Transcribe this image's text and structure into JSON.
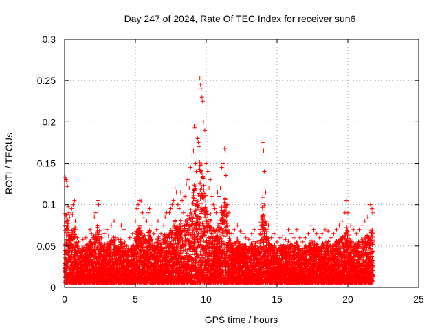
{
  "chart_data": {
    "type": "scatter",
    "title": "Day 247 of 2024, Rate Of TEC Index for receiver sun6",
    "xlabel": "GPS time / hours",
    "ylabel": "ROTI / TECUs",
    "xlim": [
      0,
      25
    ],
    "ylim": [
      0,
      0.3
    ],
    "xticks": [
      "0",
      "5",
      "10",
      "15",
      "20",
      "25"
    ],
    "xtick_values": [
      0,
      5,
      10,
      15,
      20,
      25
    ],
    "yticks": [
      "0",
      "0.05",
      "0.1",
      "0.15",
      "0.2",
      "0.25",
      "0.3"
    ],
    "ytick_values": [
      0,
      0.05,
      0.1,
      0.15,
      0.2,
      0.25,
      0.3
    ],
    "grid": true,
    "marker": "plus",
    "color": "#ff0000",
    "series": [
      {
        "points": [
          [
            0.05,
            0.133
          ],
          [
            0.1,
            0.13
          ],
          [
            0.15,
            0.128
          ],
          [
            0.2,
            0.122
          ],
          [
            0.25,
            0.098
          ],
          [
            0.3,
            0.09
          ],
          [
            0.35,
            0.085
          ],
          [
            0.4,
            0.06
          ],
          [
            0.5,
            0.095
          ],
          [
            0.55,
            0.088
          ],
          [
            0.6,
            0.1
          ],
          [
            0.7,
            0.105
          ],
          [
            0.75,
            0.08
          ],
          [
            0.8,
            0.07
          ],
          [
            0.9,
            0.06
          ],
          [
            1.0,
            0.055
          ],
          [
            1.1,
            0.045
          ],
          [
            1.3,
            0.058
          ],
          [
            1.5,
            0.06
          ],
          [
            1.6,
            0.052
          ],
          [
            1.8,
            0.07
          ],
          [
            1.9,
            0.065
          ],
          [
            2.0,
            0.06
          ],
          [
            2.1,
            0.085
          ],
          [
            2.2,
            0.09
          ],
          [
            2.35,
            0.105
          ],
          [
            2.4,
            0.1
          ],
          [
            2.5,
            0.075
          ],
          [
            2.6,
            0.06
          ],
          [
            2.8,
            0.065
          ],
          [
            3.0,
            0.07
          ],
          [
            3.1,
            0.062
          ],
          [
            3.3,
            0.075
          ],
          [
            3.5,
            0.08
          ],
          [
            3.6,
            0.06
          ],
          [
            3.8,
            0.058
          ],
          [
            4.0,
            0.075
          ],
          [
            4.2,
            0.07
          ],
          [
            4.4,
            0.05
          ],
          [
            4.6,
            0.06
          ],
          [
            4.8,
            0.065
          ],
          [
            5.0,
            0.08
          ],
          [
            5.1,
            0.095
          ],
          [
            5.2,
            0.1
          ],
          [
            5.3,
            0.105
          ],
          [
            5.4,
            0.104
          ],
          [
            5.5,
            0.09
          ],
          [
            5.6,
            0.085
          ],
          [
            5.8,
            0.08
          ],
          [
            5.9,
            0.09
          ],
          [
            6.0,
            0.095
          ],
          [
            6.1,
            0.075
          ],
          [
            6.3,
            0.065
          ],
          [
            6.5,
            0.07
          ],
          [
            6.6,
            0.08
          ],
          [
            6.8,
            0.065
          ],
          [
            7.0,
            0.075
          ],
          [
            7.1,
            0.085
          ],
          [
            7.2,
            0.09
          ],
          [
            7.4,
            0.09
          ],
          [
            7.5,
            0.095
          ],
          [
            7.6,
            0.1
          ],
          [
            7.7,
            0.105
          ],
          [
            7.8,
            0.12
          ],
          [
            7.9,
            0.115
          ],
          [
            8.0,
            0.1
          ],
          [
            8.1,
            0.095
          ],
          [
            8.2,
            0.115
          ],
          [
            8.3,
            0.105
          ],
          [
            8.4,
            0.09
          ],
          [
            8.5,
            0.11
          ],
          [
            8.6,
            0.125
          ],
          [
            8.7,
            0.13
          ],
          [
            8.8,
            0.12
          ],
          [
            8.9,
            0.145
          ],
          [
            9.0,
            0.16
          ],
          [
            9.1,
            0.165
          ],
          [
            9.15,
            0.195
          ],
          [
            9.2,
            0.193
          ],
          [
            9.25,
            0.15
          ],
          [
            9.3,
            0.14
          ],
          [
            9.4,
            0.18
          ],
          [
            9.45,
            0.175
          ],
          [
            9.5,
            0.17
          ],
          [
            9.55,
            0.253
          ],
          [
            9.6,
            0.245
          ],
          [
            9.65,
            0.24
          ],
          [
            9.7,
            0.23
          ],
          [
            9.75,
            0.225
          ],
          [
            9.8,
            0.2
          ],
          [
            9.9,
            0.19
          ],
          [
            10.0,
            0.15
          ],
          [
            10.1,
            0.14
          ],
          [
            10.2,
            0.12
          ],
          [
            10.3,
            0.13
          ],
          [
            10.4,
            0.11
          ],
          [
            10.5,
            0.1
          ],
          [
            10.6,
            0.095
          ],
          [
            10.7,
            0.09
          ],
          [
            10.8,
            0.115
          ],
          [
            10.9,
            0.11
          ],
          [
            11.0,
            0.12
          ],
          [
            11.1,
            0.145
          ],
          [
            11.2,
            0.15
          ],
          [
            11.3,
            0.168
          ],
          [
            11.35,
            0.165
          ],
          [
            11.4,
            0.135
          ],
          [
            11.5,
            0.1
          ],
          [
            11.6,
            0.09
          ],
          [
            11.8,
            0.065
          ],
          [
            12.0,
            0.07
          ],
          [
            12.2,
            0.075
          ],
          [
            12.4,
            0.068
          ],
          [
            12.6,
            0.065
          ],
          [
            12.8,
            0.06
          ],
          [
            13.0,
            0.058
          ],
          [
            13.2,
            0.065
          ],
          [
            13.4,
            0.07
          ],
          [
            13.6,
            0.055
          ],
          [
            13.8,
            0.065
          ],
          [
            13.9,
            0.085
          ],
          [
            14.0,
            0.175
          ],
          [
            14.05,
            0.165
          ],
          [
            14.1,
            0.14
          ],
          [
            14.15,
            0.12
          ],
          [
            14.2,
            0.115
          ],
          [
            14.3,
            0.08
          ],
          [
            14.4,
            0.075
          ],
          [
            14.6,
            0.06
          ],
          [
            14.8,
            0.065
          ],
          [
            15.0,
            0.055
          ],
          [
            15.2,
            0.06
          ],
          [
            15.4,
            0.062
          ],
          [
            15.6,
            0.058
          ],
          [
            15.8,
            0.07
          ],
          [
            16.0,
            0.065
          ],
          [
            16.2,
            0.06
          ],
          [
            16.4,
            0.07
          ],
          [
            16.6,
            0.06
          ],
          [
            16.8,
            0.055
          ],
          [
            17.0,
            0.06
          ],
          [
            17.2,
            0.065
          ],
          [
            17.4,
            0.075
          ],
          [
            17.6,
            0.07
          ],
          [
            17.8,
            0.065
          ],
          [
            18.0,
            0.06
          ],
          [
            18.2,
            0.065
          ],
          [
            18.4,
            0.07
          ],
          [
            18.6,
            0.068
          ],
          [
            18.8,
            0.06
          ],
          [
            19.0,
            0.065
          ],
          [
            19.2,
            0.07
          ],
          [
            19.4,
            0.075
          ],
          [
            19.6,
            0.08
          ],
          [
            19.8,
            0.09
          ],
          [
            19.9,
            0.105
          ],
          [
            20.0,
            0.09
          ],
          [
            20.2,
            0.075
          ],
          [
            20.4,
            0.07
          ],
          [
            20.6,
            0.065
          ],
          [
            20.8,
            0.07
          ],
          [
            21.0,
            0.075
          ],
          [
            21.2,
            0.08
          ],
          [
            21.4,
            0.085
          ],
          [
            21.6,
            0.1
          ],
          [
            21.7,
            0.095
          ],
          [
            21.75,
            0.09
          ]
        ]
      }
    ],
    "density": {
      "x_start": 0,
      "x_end": 21.8,
      "y_base_min": 0.005,
      "y_base_max": 0.04
    }
  }
}
